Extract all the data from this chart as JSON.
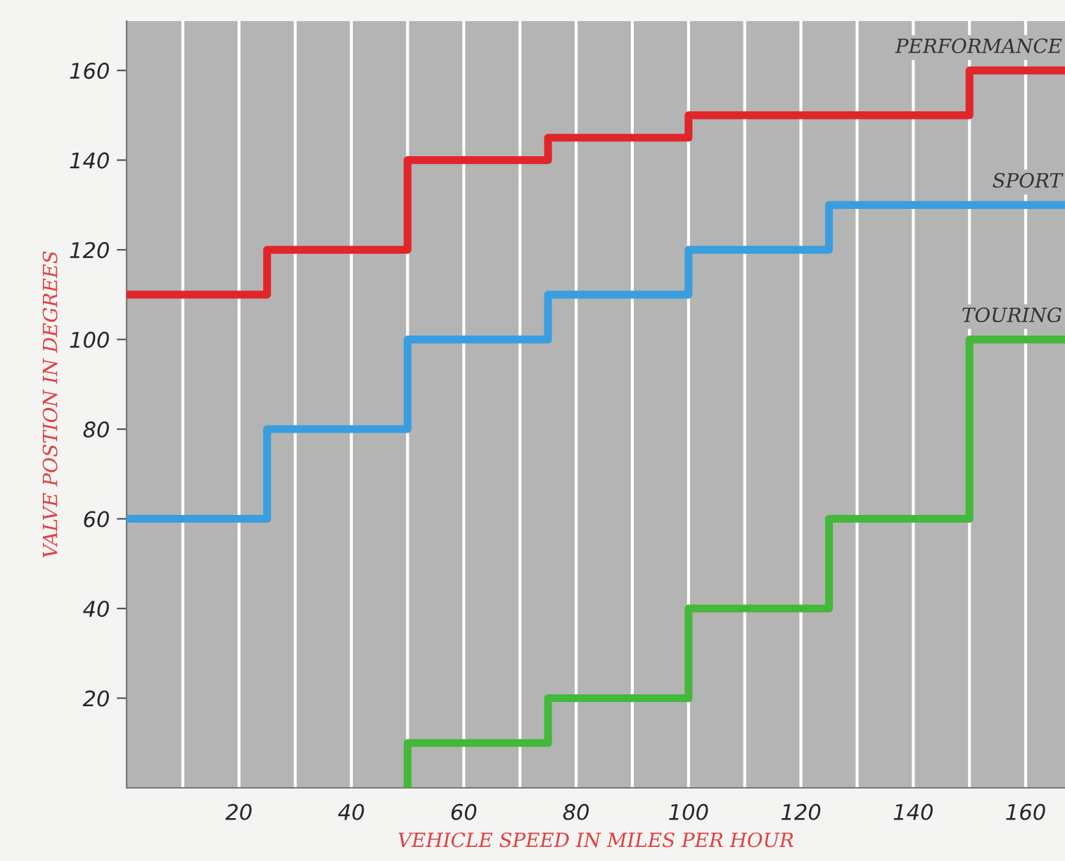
{
  "chart_data": {
    "type": "step",
    "xlabel": "VEHICLE SPEED IN MILES PER HOUR",
    "ylabel": "VALVE POSTION IN DEGREES",
    "series": [
      {
        "name": "PERFORMANCE",
        "color": "#e0262b",
        "x": [
          0,
          25,
          50,
          75,
          100,
          150,
          167
        ],
        "values": [
          110,
          120,
          140,
          145,
          150,
          160,
          160
        ]
      },
      {
        "name": "SPORT",
        "color": "#3a9de0",
        "x": [
          0,
          25,
          50,
          75,
          100,
          125,
          167
        ],
        "values": [
          60,
          80,
          100,
          110,
          120,
          130,
          130
        ]
      },
      {
        "name": "TOURING",
        "color": "#44b83a",
        "x": [
          50,
          50,
          75,
          100,
          125,
          150,
          167
        ],
        "values": [
          0,
          10,
          20,
          40,
          60,
          100,
          100
        ]
      }
    ],
    "xlim": [
      0,
      167
    ],
    "ylim": [
      0,
      171
    ],
    "xticks": [
      {
        "value": 10,
        "label": null
      },
      20,
      {
        "value": 30,
        "label": null
      },
      40,
      {
        "value": 50,
        "label": null
      },
      60,
      {
        "value": 70,
        "label": null
      },
      80,
      {
        "value": 90,
        "label": null
      },
      100,
      {
        "value": 110,
        "label": null
      },
      120,
      {
        "value": 130,
        "label": null
      },
      140,
      {
        "value": 150,
        "label": null
      },
      160
    ],
    "yticks": [
      20,
      40,
      60,
      80,
      100,
      120,
      140,
      160
    ],
    "grid": "x",
    "legend": false
  }
}
